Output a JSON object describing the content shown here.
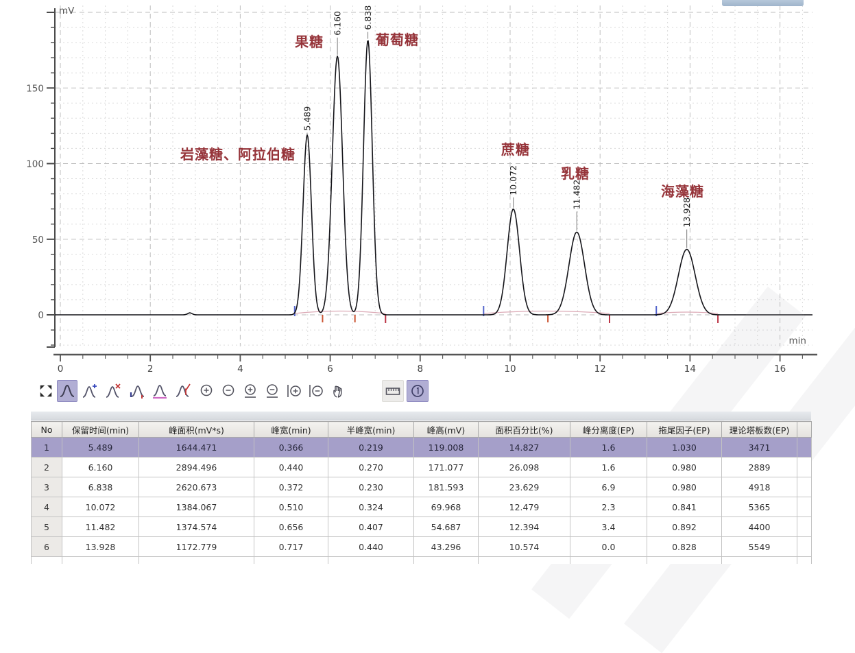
{
  "window": {
    "background": "#ffffff",
    "accent_selected_row": "#a59fc9",
    "accent_selected_tool": "#b1aed4"
  },
  "chart_data": {
    "type": "line",
    "title": "",
    "xlabel": "min",
    "ylabel": "mV",
    "x_ticks": [
      0,
      2,
      4,
      6,
      8,
      10,
      12,
      14,
      16
    ],
    "y_ticks": [
      0,
      50,
      100,
      150
    ],
    "xlim": [
      0,
      16.8
    ],
    "ylim": [
      -25,
      205
    ],
    "grid": "dashed, minor every 0.5 min / 10 mV, major every 2 min / 50 mV",
    "legend": "none",
    "signal_color": "#15151a",
    "peak_name_color": "#96343a",
    "peaks": [
      {
        "name": "岩藻糖、阿拉伯糖",
        "rt": 5.489,
        "rt_label": "5.489",
        "height_mv": 119.008,
        "half_width_min": 0.219,
        "label_x": 263,
        "label_y": 209
      },
      {
        "name": "果糖",
        "rt": 6.16,
        "rt_label": "6.160",
        "height_mv": 171.077,
        "half_width_min": 0.27,
        "label_x": 430,
        "label_y": 45
      },
      {
        "name": "葡萄糖",
        "rt": 6.838,
        "rt_label": "6.838",
        "height_mv": 181.593,
        "half_width_min": 0.23,
        "label_x": 548,
        "label_y": 42
      },
      {
        "name": "蔗糖",
        "rt": 10.072,
        "rt_label": "10.072",
        "height_mv": 69.968,
        "half_width_min": 0.324,
        "label_x": 731,
        "label_y": 202
      },
      {
        "name": "乳糖",
        "rt": 11.482,
        "rt_label": "11.482",
        "height_mv": 54.687,
        "half_width_min": 0.407,
        "label_x": 818,
        "label_y": 237
      },
      {
        "name": "海藻糖",
        "rt": 13.928,
        "rt_label": "13.928",
        "height_mv": 43.296,
        "half_width_min": 0.44,
        "label_x": 964,
        "label_y": 263
      }
    ],
    "baseline_blip": {
      "t": 2.88,
      "height_mv": 1.3,
      "sigma_min": 0.05
    },
    "integration_groups": [
      {
        "start": 5.21,
        "valleys": [
          5.83,
          6.55
        ],
        "end": 7.23
      },
      {
        "start": 9.41,
        "valleys": [
          10.84
        ],
        "end": 12.21
      },
      {
        "start": 13.25,
        "valleys": [],
        "end": 14.62
      }
    ]
  },
  "toolbar": {
    "tools": [
      {
        "name": "maximize",
        "selected": false
      },
      {
        "name": "peak-tool",
        "selected": true
      },
      {
        "name": "add-peak",
        "selected": false
      },
      {
        "name": "delete-peak",
        "selected": false
      },
      {
        "name": "peak-start-end",
        "selected": false
      },
      {
        "name": "baseline-tool",
        "selected": false
      },
      {
        "name": "cut-peak",
        "selected": false
      },
      {
        "name": "zoom-in",
        "selected": false
      },
      {
        "name": "zoom-out",
        "selected": false
      },
      {
        "name": "zoom-in-horizontal",
        "selected": false
      },
      {
        "name": "zoom-out-horizontal",
        "selected": false
      },
      {
        "name": "zoom-in-vertical",
        "selected": false
      },
      {
        "name": "zoom-out-vertical",
        "selected": false
      },
      {
        "name": "pan-hand",
        "selected": false
      },
      {
        "name": "ruler",
        "selected": false
      },
      {
        "name": "circle-one",
        "selected": true
      }
    ]
  },
  "results_table": {
    "headers": [
      "No",
      "保留时间(min)",
      "峰面积(mV*s)",
      "峰宽(min)",
      "半峰宽(min)",
      "峰高(mV)",
      "面积百分比(%)",
      "峰分离度(EP)",
      "拖尾因子(EP)",
      "理论塔板数(EP)"
    ],
    "rows": [
      [
        "1",
        "5.489",
        "1644.471",
        "0.366",
        "0.219",
        "119.008",
        "14.827",
        "1.6",
        "1.030",
        "3471"
      ],
      [
        "2",
        "6.160",
        "2894.496",
        "0.440",
        "0.270",
        "171.077",
        "26.098",
        "1.6",
        "0.980",
        "2889"
      ],
      [
        "3",
        "6.838",
        "2620.673",
        "0.372",
        "0.230",
        "181.593",
        "23.629",
        "6.9",
        "0.980",
        "4918"
      ],
      [
        "4",
        "10.072",
        "1384.067",
        "0.510",
        "0.324",
        "69.968",
        "12.479",
        "2.3",
        "0.841",
        "5365"
      ],
      [
        "5",
        "11.482",
        "1374.574",
        "0.656",
        "0.407",
        "54.687",
        "12.394",
        "3.4",
        "0.892",
        "4400"
      ],
      [
        "6",
        "13.928",
        "1172.779",
        "0.717",
        "0.440",
        "43.296",
        "10.574",
        "0.0",
        "0.828",
        "5549"
      ]
    ],
    "selected_row_index": 0
  }
}
